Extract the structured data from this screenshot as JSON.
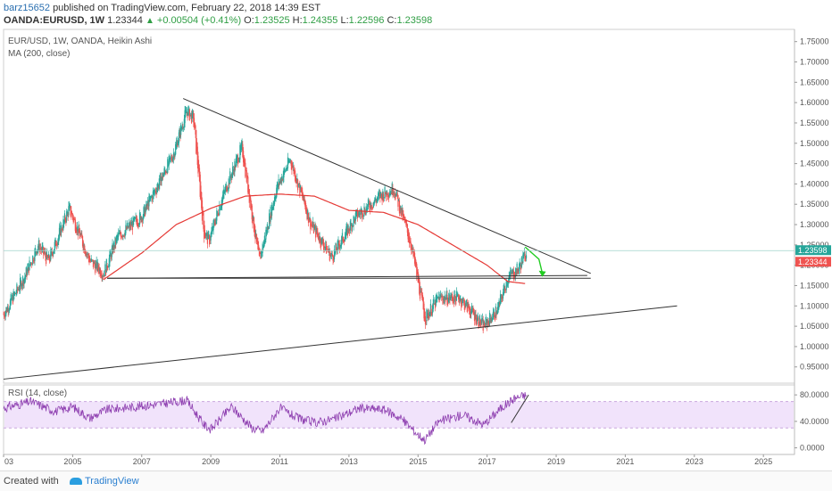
{
  "header": {
    "username": "barz15652",
    "published_text": "published on TradingView.com, February 22, 2018 14:39 EST"
  },
  "quote": {
    "symbol": "OANDA:EURUSD, 1W",
    "last": "1.23344",
    "change": "+0.00504 (+0.41%)",
    "open_label": "O:",
    "open": "1.23525",
    "high_label": "H:",
    "high": "1.24355",
    "low_label": "L:",
    "low": "1.22596",
    "close_label": "C:",
    "close": "1.23598"
  },
  "main_legend": {
    "line1": "EUR/USD, 1W, OANDA, Heikin Ashi",
    "line2": "MA (200, close)"
  },
  "price_tags": {
    "close": "1.23598",
    "last": "1.23344"
  },
  "rsi_legend": "RSI (14, close)",
  "footer": {
    "created": "Created with",
    "brand": "TradingView"
  },
  "colors": {
    "bull": "#26a69a",
    "bear": "#ef5350",
    "ma": "#e53935",
    "trend": "#333333",
    "rsi": "#8e3fb0",
    "rsi_band": "#f1e3fb",
    "arrow": "#22cc22",
    "tag_close": "#26a69a",
    "tag_last": "#ef5350"
  },
  "chart_data": [
    {
      "type": "candlestick",
      "title": "EUR/USD, 1W, OANDA, Heikin Ashi",
      "x_ticks": [
        "03",
        "2005",
        "2007",
        "2009",
        "2011",
        "2013",
        "2015",
        "2017",
        "2019",
        "2021",
        "2023",
        "2025"
      ],
      "y_ticks": [
        "0.95000",
        "1.00000",
        "1.05000",
        "1.10000",
        "1.15000",
        "1.20000",
        "1.25000",
        "1.30000",
        "1.35000",
        "1.40000",
        "1.45000",
        "1.50000",
        "1.55000",
        "1.60000",
        "1.65000",
        "1.70000",
        "1.75000"
      ],
      "ylim": [
        0.91,
        1.78
      ],
      "xlim": [
        2003.0,
        2025.9
      ],
      "price_keypoints": [
        [
          2003.0,
          1.08
        ],
        [
          2003.6,
          1.17
        ],
        [
          2004.0,
          1.25
        ],
        [
          2004.3,
          1.21
        ],
        [
          2004.9,
          1.34
        ],
        [
          2005.5,
          1.21
        ],
        [
          2005.9,
          1.18
        ],
        [
          2006.3,
          1.27
        ],
        [
          2007.0,
          1.32
        ],
        [
          2007.9,
          1.47
        ],
        [
          2008.3,
          1.58
        ],
        [
          2008.5,
          1.56
        ],
        [
          2008.8,
          1.28
        ],
        [
          2008.95,
          1.26
        ],
        [
          2009.3,
          1.36
        ],
        [
          2009.9,
          1.49
        ],
        [
          2010.4,
          1.21
        ],
        [
          2010.9,
          1.39
        ],
        [
          2011.3,
          1.46
        ],
        [
          2011.9,
          1.3
        ],
        [
          2012.5,
          1.22
        ],
        [
          2013.2,
          1.32
        ],
        [
          2013.9,
          1.37
        ],
        [
          2014.3,
          1.39
        ],
        [
          2014.8,
          1.25
        ],
        [
          2015.2,
          1.07
        ],
        [
          2015.6,
          1.12
        ],
        [
          2016.2,
          1.12
        ],
        [
          2016.9,
          1.05
        ],
        [
          2017.3,
          1.09
        ],
        [
          2017.6,
          1.17
        ],
        [
          2017.9,
          1.19
        ],
        [
          2018.15,
          1.236
        ]
      ],
      "ma200_keypoints": [
        [
          2005.9,
          1.165
        ],
        [
          2007.0,
          1.23
        ],
        [
          2008.0,
          1.3
        ],
        [
          2009.0,
          1.34
        ],
        [
          2010.0,
          1.37
        ],
        [
          2011.0,
          1.375
        ],
        [
          2012.0,
          1.37
        ],
        [
          2013.0,
          1.335
        ],
        [
          2014.0,
          1.33
        ],
        [
          2015.0,
          1.3
        ],
        [
          2016.0,
          1.25
        ],
        [
          2017.0,
          1.2
        ],
        [
          2017.6,
          1.16
        ],
        [
          2018.1,
          1.155
        ]
      ],
      "trendlines": [
        {
          "from": [
            2006.0,
            1.168
          ],
          "to": [
            2019.9,
            1.175
          ]
        },
        {
          "from": [
            2006.0,
            1.168
          ],
          "to": [
            2020.0,
            1.168
          ]
        },
        {
          "from": [
            2008.2,
            1.61
          ],
          "to": [
            2020.0,
            1.18
          ]
        },
        {
          "from": [
            2003.0,
            0.92
          ],
          "to": [
            2022.5,
            1.1
          ]
        }
      ],
      "projection_arrow": {
        "from": [
          2018.1,
          1.245
        ],
        "via": [
          2018.5,
          1.215
        ],
        "to": [
          2018.6,
          1.18
        ]
      }
    },
    {
      "type": "line",
      "title": "RSI (14, close)",
      "y_ticks": [
        "0.0000",
        "40.0000",
        "80.0000"
      ],
      "ylim": [
        -10,
        95
      ],
      "band": [
        30,
        70
      ],
      "rsi_keypoints": [
        [
          2003.0,
          60
        ],
        [
          2003.8,
          70
        ],
        [
          2004.5,
          55
        ],
        [
          2005.0,
          62
        ],
        [
          2005.5,
          45
        ],
        [
          2006.0,
          58
        ],
        [
          2006.8,
          62
        ],
        [
          2007.5,
          66
        ],
        [
          2008.3,
          72
        ],
        [
          2008.8,
          35
        ],
        [
          2009.0,
          28
        ],
        [
          2009.6,
          62
        ],
        [
          2010.2,
          30
        ],
        [
          2010.5,
          25
        ],
        [
          2011.0,
          60
        ],
        [
          2011.5,
          45
        ],
        [
          2012.0,
          38
        ],
        [
          2012.6,
          44
        ],
        [
          2013.3,
          60
        ],
        [
          2014.0,
          58
        ],
        [
          2014.5,
          45
        ],
        [
          2015.0,
          20
        ],
        [
          2015.2,
          12
        ],
        [
          2015.6,
          40
        ],
        [
          2016.3,
          50
        ],
        [
          2016.9,
          35
        ],
        [
          2017.4,
          60
        ],
        [
          2017.8,
          75
        ],
        [
          2018.15,
          80
        ]
      ],
      "trendline": {
        "from": [
          2017.7,
          38
        ],
        "to": [
          2018.2,
          80
        ]
      }
    }
  ]
}
